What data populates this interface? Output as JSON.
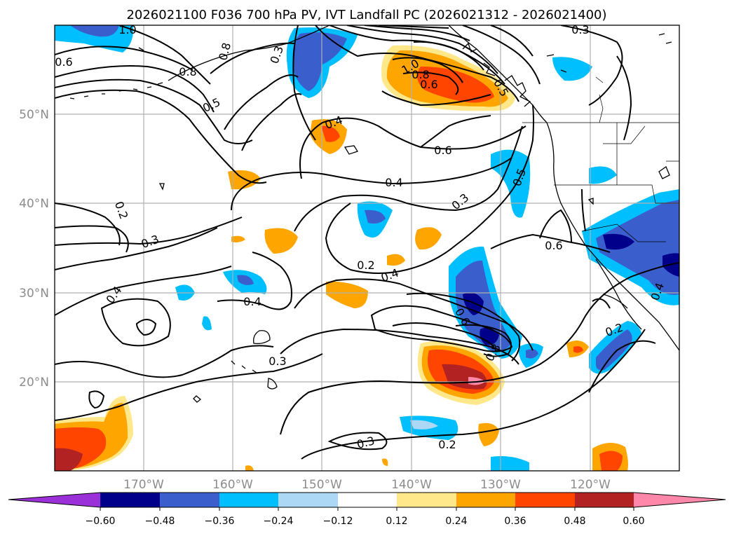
{
  "title": "2026021100 F036 700 hPa PV, IVT Landfall PC (2026021312 - 2026021400)",
  "longitude_labels": [
    "170°W",
    "160°W",
    "150°W",
    "140°W",
    "130°W",
    "120°W"
  ],
  "latitude_labels": [
    "50°N",
    "40°N",
    "30°N",
    "20°N"
  ],
  "colorbar": {
    "ticks": [
      "−0.60",
      "−0.48",
      "−0.36",
      "−0.24",
      "−0.12",
      "0.12",
      "0.24",
      "0.36",
      "0.48",
      "0.60"
    ],
    "colors": [
      "#9b30d8",
      "#00008b",
      "#3a5fcd",
      "#00bfff",
      "#add8f5",
      "#ffffff",
      "#ffe88a",
      "#ffa500",
      "#ff4500",
      "#b22222",
      "#ff88aa"
    ]
  },
  "colors": {
    "neg_extreme": "#00008b",
    "neg_strong": "#3a5fcd",
    "neg_mid": "#00bfff",
    "neg_weak": "#add8f5",
    "pos_weak": "#ffe88a",
    "pos_mid": "#ffa500",
    "pos_strong": "#ff4500",
    "pos_extreme": "#b22222",
    "pos_max": "#ff88aa"
  },
  "contour_labels": [
    "1.0",
    "0.6",
    "0.8",
    "0.3",
    "0.8",
    "0.5",
    "1.0",
    "0.8",
    "0.6",
    "0.5",
    "0.3",
    "0.4",
    "0.6",
    "0.4",
    "0.5",
    "0.2",
    "0.3",
    "0.3",
    "0.2",
    "0.4",
    "0.6",
    "0.4",
    "0.4",
    "0.6",
    "0.8",
    "0.3",
    "0.2",
    "0.3",
    "0.2",
    "0.4"
  ]
}
